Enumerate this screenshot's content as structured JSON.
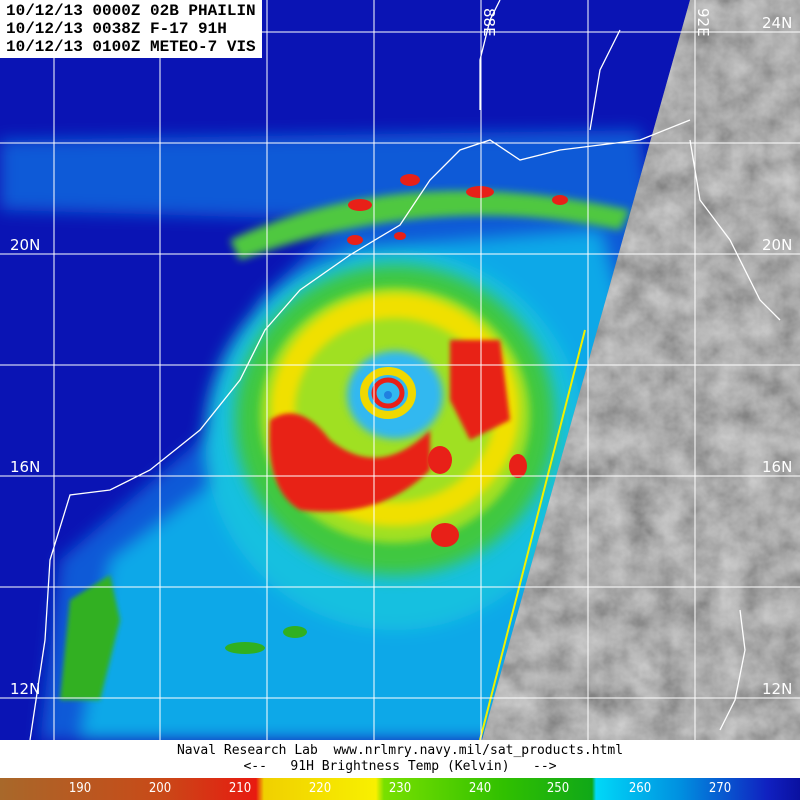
{
  "header": {
    "lines": [
      "10/12/13 0000Z 02B PHAILIN",
      "10/12/13 0038Z F-17 91H",
      "10/12/13 0100Z METEO-7 VIS"
    ]
  },
  "grid_labels": {
    "lat": [
      "24N",
      "20N",
      "16N",
      "12N"
    ],
    "lon": [
      "88E",
      "92E"
    ]
  },
  "footer": {
    "line1": "Naval Research Lab  www.nrlmry.navy.mil/sat_products.html",
    "line2": "<--   91H Brightness Temp (Kelvin)   -->"
  },
  "colorbar": {
    "ticks": [
      "190",
      "200",
      "210",
      "220",
      "230",
      "240",
      "250",
      "260",
      "270"
    ]
  },
  "colors": {
    "background_ocean": "#0a14b4",
    "coastline": "#ffffff",
    "swath_edge": "#f0f000"
  }
}
